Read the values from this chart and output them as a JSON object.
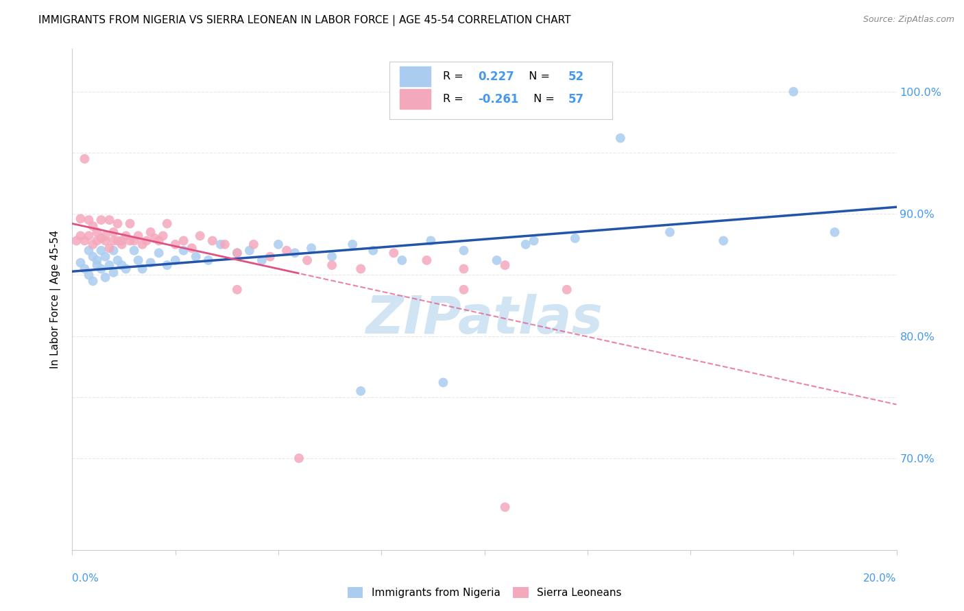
{
  "title": "IMMIGRANTS FROM NIGERIA VS SIERRA LEONEAN IN LABOR FORCE | AGE 45-54 CORRELATION CHART",
  "source": "Source: ZipAtlas.com",
  "legend_label1": "Immigrants from Nigeria",
  "legend_label2": "Sierra Leoneans",
  "R1": 0.227,
  "N1": 52,
  "R2": -0.261,
  "N2": 57,
  "ytick_vals": [
    0.7,
    0.75,
    0.8,
    0.85,
    0.9,
    0.95,
    1.0
  ],
  "ytick_labels": [
    "70.0%",
    "",
    "80.0%",
    "",
    "90.0%",
    "",
    "100.0%"
  ],
  "xmin": 0.0,
  "xmax": 0.2,
  "ymin": 0.625,
  "ymax": 1.035,
  "nigeria_x": [
    0.002,
    0.003,
    0.004,
    0.004,
    0.005,
    0.005,
    0.006,
    0.006,
    0.007,
    0.007,
    0.008,
    0.008,
    0.009,
    0.01,
    0.01,
    0.011,
    0.012,
    0.013,
    0.015,
    0.016,
    0.017,
    0.019,
    0.021,
    0.023,
    0.025,
    0.027,
    0.03,
    0.033,
    0.036,
    0.04,
    0.043,
    0.046,
    0.05,
    0.054,
    0.058,
    0.063,
    0.068,
    0.073,
    0.08,
    0.087,
    0.095,
    0.103,
    0.112,
    0.122,
    0.133,
    0.145,
    0.158,
    0.09,
    0.11,
    0.07,
    0.175,
    0.185
  ],
  "nigeria_y": [
    0.86,
    0.855,
    0.85,
    0.87,
    0.845,
    0.865,
    0.858,
    0.862,
    0.855,
    0.87,
    0.848,
    0.865,
    0.858,
    0.852,
    0.87,
    0.862,
    0.858,
    0.855,
    0.87,
    0.862,
    0.855,
    0.86,
    0.868,
    0.858,
    0.862,
    0.87,
    0.865,
    0.862,
    0.875,
    0.868,
    0.87,
    0.862,
    0.875,
    0.868,
    0.872,
    0.865,
    0.875,
    0.87,
    0.862,
    0.878,
    0.87,
    0.862,
    0.878,
    0.88,
    0.962,
    0.885,
    0.878,
    0.762,
    0.875,
    0.755,
    1.0,
    0.885
  ],
  "sierra_x": [
    0.001,
    0.002,
    0.002,
    0.003,
    0.003,
    0.004,
    0.004,
    0.005,
    0.005,
    0.006,
    0.006,
    0.007,
    0.007,
    0.008,
    0.008,
    0.009,
    0.009,
    0.01,
    0.01,
    0.011,
    0.011,
    0.012,
    0.012,
    0.013,
    0.014,
    0.014,
    0.015,
    0.016,
    0.017,
    0.018,
    0.019,
    0.02,
    0.021,
    0.022,
    0.023,
    0.025,
    0.027,
    0.029,
    0.031,
    0.034,
    0.037,
    0.04,
    0.044,
    0.048,
    0.052,
    0.057,
    0.063,
    0.07,
    0.078,
    0.086,
    0.095,
    0.105,
    0.04,
    0.095,
    0.055,
    0.12,
    0.105
  ],
  "sierra_y": [
    0.878,
    0.882,
    0.896,
    0.945,
    0.878,
    0.882,
    0.895,
    0.875,
    0.89,
    0.878,
    0.885,
    0.88,
    0.895,
    0.878,
    0.882,
    0.895,
    0.872,
    0.878,
    0.885,
    0.878,
    0.892,
    0.878,
    0.875,
    0.882,
    0.878,
    0.892,
    0.878,
    0.882,
    0.875,
    0.878,
    0.885,
    0.88,
    0.878,
    0.882,
    0.892,
    0.875,
    0.878,
    0.872,
    0.882,
    0.878,
    0.875,
    0.868,
    0.875,
    0.865,
    0.87,
    0.862,
    0.858,
    0.855,
    0.868,
    0.862,
    0.855,
    0.858,
    0.838,
    0.838,
    0.7,
    0.838,
    0.66
  ],
  "color_nigeria": "#aaccf0",
  "color_sierra": "#f4a8bc",
  "color_trend_nigeria": "#2255aa",
  "color_trend_sierra": "#e05080",
  "color_axis_text": "#4499ee",
  "background_color": "#ffffff",
  "watermark": "ZIPatlas",
  "watermark_color": "#d0e4f4",
  "grid_color": "#e8e8e8"
}
